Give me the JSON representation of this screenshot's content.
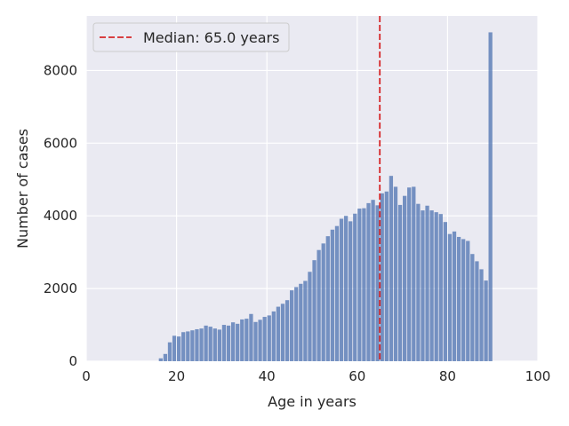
{
  "chart_data": {
    "type": "bar",
    "xlabel": "Age in years",
    "ylabel": "Number of cases",
    "xlim": [
      0,
      100
    ],
    "ylim": [
      0,
      9500
    ],
    "xticks": [
      0,
      20,
      40,
      60,
      80,
      100
    ],
    "yticks": [
      0,
      2000,
      4000,
      6000,
      8000
    ],
    "grid": true,
    "legend_position": "upper-left",
    "bin_width": 1,
    "colors": {
      "bars": "#4c72b0",
      "median_line": "#d62728",
      "background": "#eaeaf2",
      "grid": "#ffffff"
    },
    "median": {
      "value": 65.0,
      "label": "Median: 65.0 years"
    },
    "bins": {
      "x": [
        16,
        17,
        18,
        19,
        20,
        21,
        22,
        23,
        24,
        25,
        26,
        27,
        28,
        29,
        30,
        31,
        32,
        33,
        34,
        35,
        36,
        37,
        38,
        39,
        40,
        41,
        42,
        43,
        44,
        45,
        46,
        47,
        48,
        49,
        50,
        51,
        52,
        53,
        54,
        55,
        56,
        57,
        58,
        59,
        60,
        61,
        62,
        63,
        64,
        65,
        66,
        67,
        68,
        69,
        70,
        71,
        72,
        73,
        74,
        75,
        76,
        77,
        78,
        79,
        80,
        81,
        82,
        83,
        84,
        85,
        86,
        87,
        88,
        89
      ],
      "values": [
        80,
        200,
        520,
        700,
        680,
        800,
        820,
        850,
        880,
        900,
        980,
        950,
        900,
        870,
        1000,
        980,
        1070,
        1030,
        1150,
        1170,
        1300,
        1080,
        1140,
        1220,
        1260,
        1370,
        1500,
        1580,
        1680,
        1950,
        2040,
        2130,
        2210,
        2460,
        2780,
        3060,
        3240,
        3440,
        3620,
        3720,
        3920,
        4000,
        3850,
        4060,
        4200,
        4210,
        4350,
        4440,
        4290,
        4620,
        4670,
        5100,
        4800,
        4300,
        4550,
        4780,
        4800,
        4330,
        4150,
        4280,
        4150,
        4100,
        4050,
        3830,
        3500,
        3570,
        3420,
        3360,
        3310,
        2950,
        2750,
        2530,
        2220,
        9050
      ]
    }
  }
}
